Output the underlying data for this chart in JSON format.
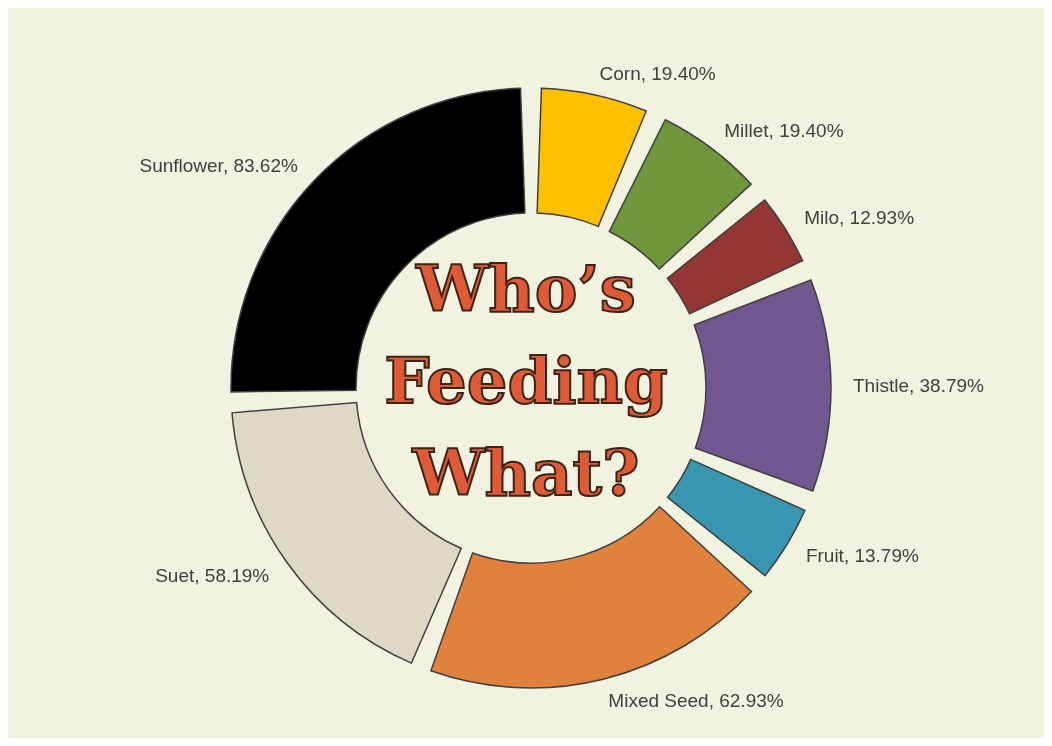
{
  "chart_data": {
    "type": "donut",
    "title": "Who’s Feeding What?",
    "categories": [
      "Corn",
      "Millet",
      "Milo",
      "Thistle",
      "Fruit",
      "Mixed Seed",
      "Suet",
      "Sunflower"
    ],
    "values": [
      19.4,
      19.4,
      12.93,
      38.79,
      13.79,
      62.93,
      58.19,
      83.62
    ],
    "value_labels": [
      "19.40%",
      "19.40%",
      "12.93%",
      "38.79%",
      "13.79%",
      "62.93%",
      "58.19%",
      "83.62%"
    ],
    "colors": [
      "#ffc000",
      "#70963c",
      "#943634",
      "#71578f",
      "#3896b0",
      "#e0823c",
      "#ddd9c4",
      "#000000"
    ]
  }
}
